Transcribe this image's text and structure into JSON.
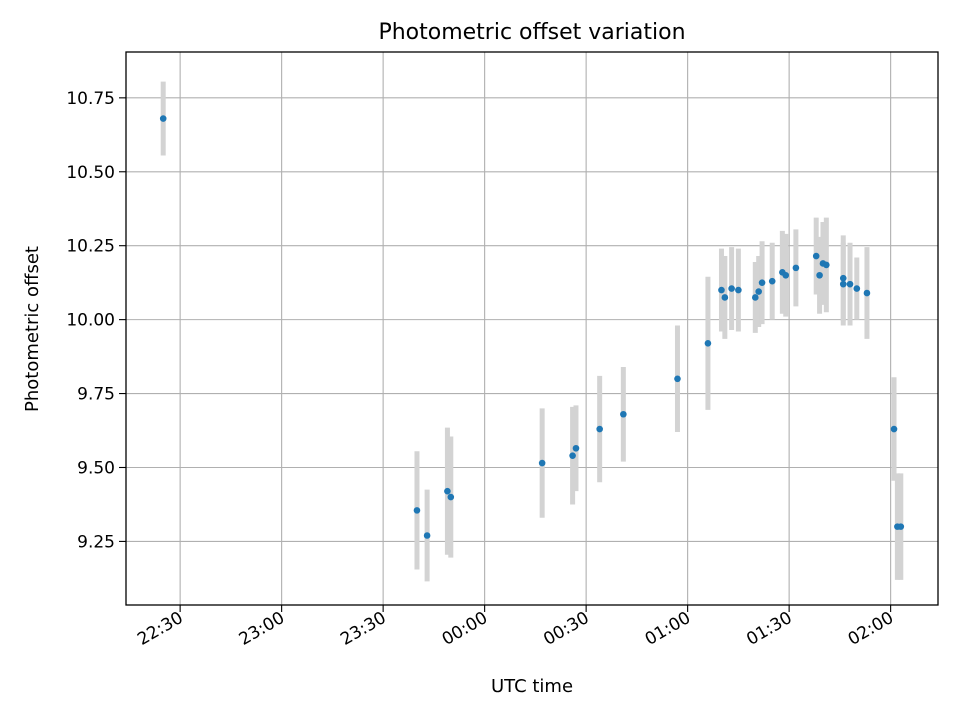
{
  "chart_data": {
    "type": "scatter",
    "title": "Photometric offset variation",
    "xlabel": "UTC time",
    "ylabel": "Photometric offset",
    "grid": true,
    "xlim": [
      "22:14",
      "02:14"
    ],
    "ylim": [
      9.035,
      10.905
    ],
    "xticks": [
      {
        "time": "22:30",
        "label": "22:30"
      },
      {
        "time": "23:00",
        "label": "23:00"
      },
      {
        "time": "23:30",
        "label": "23:30"
      },
      {
        "time": "00:00",
        "label": "00:00"
      },
      {
        "time": "00:30",
        "label": "00:30"
      },
      {
        "time": "01:00",
        "label": "01:00"
      },
      {
        "time": "01:30",
        "label": "01:30"
      },
      {
        "time": "02:00",
        "label": "02:00"
      }
    ],
    "yticks": [
      {
        "value": 9.25,
        "label": "9.25"
      },
      {
        "value": 9.5,
        "label": "9.50"
      },
      {
        "value": 9.75,
        "label": "9.75"
      },
      {
        "value": 10.0,
        "label": "10.00"
      },
      {
        "value": 10.25,
        "label": "10.25"
      },
      {
        "value": 10.5,
        "label": "10.50"
      },
      {
        "value": 10.75,
        "label": "10.75"
      }
    ],
    "series": [
      {
        "color": "#1f77b4",
        "errorbar_color": "#d3d3d3",
        "points": [
          {
            "time": "22:25",
            "y": 10.68,
            "err": 0.125
          },
          {
            "time": "23:43",
            "y": 9.27,
            "err": 0.155
          },
          {
            "time": "23:40",
            "y": 9.355,
            "err": 0.2
          },
          {
            "time": "23:49",
            "y": 9.42,
            "err": 0.215
          },
          {
            "time": "23:50",
            "y": 9.4,
            "err": 0.205
          },
          {
            "time": "00:17",
            "y": 9.515,
            "err": 0.185
          },
          {
            "time": "00:26",
            "y": 9.54,
            "err": 0.165
          },
          {
            "time": "00:27",
            "y": 9.565,
            "err": 0.145
          },
          {
            "time": "00:34",
            "y": 9.63,
            "err": 0.18
          },
          {
            "time": "00:41",
            "y": 9.68,
            "err": 0.16
          },
          {
            "time": "00:57",
            "y": 9.8,
            "err": 0.18
          },
          {
            "time": "01:06",
            "y": 9.92,
            "err": 0.225
          },
          {
            "time": "01:10",
            "y": 10.1,
            "err": 0.14
          },
          {
            "time": "01:11",
            "y": 10.075,
            "err": 0.14
          },
          {
            "time": "01:13",
            "y": 10.105,
            "err": 0.14
          },
          {
            "time": "01:15",
            "y": 10.1,
            "err": 0.14
          },
          {
            "time": "01:20",
            "y": 10.075,
            "err": 0.12
          },
          {
            "time": "01:21",
            "y": 10.095,
            "err": 0.12
          },
          {
            "time": "01:22",
            "y": 10.125,
            "err": 0.14
          },
          {
            "time": "01:25",
            "y": 10.13,
            "err": 0.13
          },
          {
            "time": "01:28",
            "y": 10.16,
            "err": 0.14
          },
          {
            "time": "01:29",
            "y": 10.15,
            "err": 0.14
          },
          {
            "time": "01:32",
            "y": 10.175,
            "err": 0.13
          },
          {
            "time": "01:38",
            "y": 10.215,
            "err": 0.13
          },
          {
            "time": "01:39",
            "y": 10.15,
            "err": 0.13
          },
          {
            "time": "01:40",
            "y": 10.19,
            "err": 0.14
          },
          {
            "time": "01:41",
            "y": 10.185,
            "err": 0.16
          },
          {
            "time": "01:46",
            "y": 10.14,
            "err": 0.145
          },
          {
            "time": "01:46",
            "y": 10.12,
            "err": 0.14
          },
          {
            "time": "01:48",
            "y": 10.12,
            "err": 0.14
          },
          {
            "time": "01:50",
            "y": 10.105,
            "err": 0.105
          },
          {
            "time": "01:53",
            "y": 10.09,
            "err": 0.155
          },
          {
            "time": "02:01",
            "y": 9.63,
            "err": 0.175
          },
          {
            "time": "02:02",
            "y": 9.3,
            "err": 0.18
          },
          {
            "time": "02:03",
            "y": 9.3,
            "err": 0.18
          }
        ]
      }
    ]
  }
}
